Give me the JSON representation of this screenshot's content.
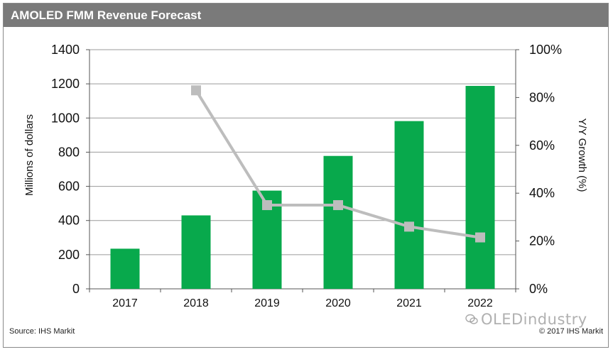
{
  "header": {
    "title": "AMOLED FMM Revenue Forecast"
  },
  "footer": {
    "source": "Source: IHS Markit",
    "copyright": "© 2017 IHS Markit",
    "watermark": "OLEDindustry"
  },
  "colors": {
    "bar": "#08a94c",
    "line": "#bdbdbd",
    "marker": "#bdbdbd",
    "grid": "#9a9a9a",
    "title_bar": "#7a7a7a"
  },
  "chart_data": {
    "type": "bar+line",
    "categories": [
      "2017",
      "2018",
      "2019",
      "2020",
      "2021",
      "2022"
    ],
    "series": [
      {
        "values": [
          235,
          430,
          575,
          778,
          982,
          1188
        ],
        "axis": "left",
        "mark": "bar"
      },
      {
        "values": [
          null,
          83,
          35,
          35,
          26,
          21.5
        ],
        "axis": "right",
        "mark": "line"
      }
    ],
    "ylabel": "Millions of dollars",
    "y2label": "Y/Y  Growth (%)",
    "ylim": [
      0,
      1400
    ],
    "y2lim": [
      0,
      100
    ],
    "yticks": [
      "0",
      "200",
      "400",
      "600",
      "800",
      "1000",
      "1200",
      "1400"
    ],
    "y2ticks": [
      "0%",
      "20%",
      "40%",
      "60%",
      "80%",
      "100%"
    ],
    "grid": true,
    "legend": "none"
  }
}
